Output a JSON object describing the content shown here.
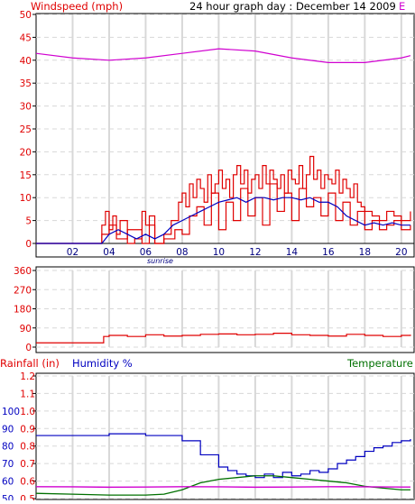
{
  "header": {
    "left": "Windspeed (mph)",
    "center": "24 hour graph day : December 14 2009",
    "right_partial": "E"
  },
  "colors": {
    "wind": "#e00000",
    "avg": "#0000c0",
    "magenta": "#d000d0",
    "humidity": "#0000c0",
    "temperature": "#007000",
    "axis": "#000000",
    "grid": "#d8d8d8"
  },
  "chart_data": [
    {
      "type": "line",
      "title": "Windspeed (mph)",
      "ylim": [
        0,
        50
      ],
      "yticks": [
        0,
        5,
        10,
        15,
        20,
        25,
        30,
        35,
        40,
        45,
        50
      ],
      "xticks": [
        "02",
        "04",
        "06",
        "08",
        "10",
        "12",
        "14",
        "16",
        "18",
        "20"
      ],
      "annotation": "sunrise",
      "series": [
        {
          "name": "",
          "role": "gust",
          "x": [
            0,
            1,
            2,
            3,
            3.6,
            3.8,
            4,
            4.2,
            4.4,
            4.6,
            5,
            5.4,
            5.8,
            6,
            6.2,
            6.5,
            7,
            7.4,
            7.8,
            8,
            8.2,
            8.4,
            8.6,
            8.8,
            9,
            9.2,
            9.4,
            9.6,
            9.8,
            10,
            10.2,
            10.4,
            10.6,
            10.8,
            11,
            11.2,
            11.4,
            11.6,
            11.8,
            12,
            12.2,
            12.4,
            12.6,
            12.8,
            13,
            13.2,
            13.4,
            13.6,
            13.8,
            14,
            14.2,
            14.4,
            14.6,
            14.8,
            15,
            15.2,
            15.4,
            15.6,
            15.8,
            16,
            16.2,
            16.4,
            16.6,
            16.8,
            17,
            17.2,
            17.4,
            17.6,
            17.8,
            18,
            18.4,
            18.8,
            19.2,
            19.6,
            20,
            20.5
          ],
          "values": [
            0,
            0,
            0,
            0,
            4,
            7,
            3,
            6,
            2,
            5,
            0,
            1,
            7,
            4,
            6,
            0,
            2,
            5,
            9,
            11,
            8,
            13,
            10,
            14,
            12,
            9,
            15,
            11,
            13,
            16,
            12,
            14,
            10,
            15,
            17,
            13,
            16,
            11,
            14,
            15,
            12,
            17,
            13,
            16,
            14,
            12,
            15,
            11,
            16,
            14,
            13,
            17,
            12,
            15,
            19,
            14,
            16,
            12,
            15,
            14,
            13,
            16,
            11,
            14,
            12,
            10,
            13,
            9,
            8,
            7,
            6,
            5,
            7,
            6,
            5,
            7
          ]
        },
        {
          "name": "",
          "role": "speed",
          "x": [
            0,
            1,
            2,
            3,
            3.6,
            4,
            4.4,
            5,
            5.8,
            6.2,
            6.5,
            7,
            7.6,
            8,
            8.4,
            8.8,
            9.2,
            9.6,
            10,
            10.4,
            10.8,
            11.2,
            11.6,
            12,
            12.4,
            12.8,
            13.2,
            13.6,
            14,
            14.4,
            14.8,
            15.2,
            15.6,
            16,
            16.4,
            16.8,
            17.2,
            17.6,
            18,
            18.4,
            18.8,
            19.2,
            19.6,
            20,
            20.5
          ],
          "values": [
            0,
            0,
            0,
            0,
            2,
            4,
            1,
            3,
            0,
            4,
            0,
            1,
            3,
            2,
            6,
            8,
            4,
            11,
            3,
            9,
            5,
            12,
            6,
            10,
            4,
            13,
            7,
            11,
            5,
            12,
            8,
            10,
            6,
            11,
            5,
            9,
            4,
            7,
            3,
            5,
            3,
            4,
            5,
            3,
            4
          ]
        },
        {
          "name": "",
          "role": "average",
          "x": [
            0,
            3.6,
            4,
            4.5,
            5,
            5.5,
            6,
            6.5,
            7,
            7.5,
            8,
            8.5,
            9,
            9.5,
            10,
            10.5,
            11,
            11.5,
            12,
            12.5,
            13,
            13.5,
            14,
            14.5,
            15,
            15.5,
            16,
            16.5,
            17,
            17.5,
            18,
            18.5,
            19,
            19.5,
            20,
            20.5
          ],
          "values": [
            0,
            0,
            2,
            3,
            2,
            1,
            2,
            1,
            2,
            4,
            5,
            6,
            7,
            8,
            9,
            9.5,
            10,
            9,
            10,
            10,
            9.5,
            10,
            10,
            9.5,
            10,
            9,
            9,
            8,
            6,
            5,
            4,
            4.5,
            4,
            4.5,
            4,
            4
          ]
        },
        {
          "name": "",
          "role": "magenta",
          "x": [
            0,
            2,
            4,
            6,
            8,
            10,
            12,
            14,
            16,
            18,
            20,
            20.5
          ],
          "values": [
            41.5,
            40.5,
            40,
            40.5,
            41.5,
            42.5,
            42,
            40.5,
            39.5,
            39.5,
            40.5,
            41
          ]
        }
      ]
    },
    {
      "type": "line",
      "title": "",
      "ylim": [
        0,
        360
      ],
      "yticks": [
        0,
        90,
        180,
        270,
        360
      ],
      "series": [
        {
          "name": "",
          "x": [
            0,
            1,
            2,
            3,
            3.6,
            3.7,
            4,
            5,
            6,
            7,
            8,
            9,
            10,
            11,
            12,
            13,
            14,
            15,
            16,
            17,
            18,
            19,
            20,
            20.5
          ],
          "values": [
            20,
            20,
            20,
            20,
            20,
            50,
            55,
            50,
            58,
            52,
            55,
            60,
            62,
            58,
            60,
            65,
            58,
            55,
            52,
            60,
            55,
            50,
            55,
            58
          ]
        }
      ]
    },
    {
      "type": "line",
      "title": "Rainfall (in)",
      "ylabel": "Rainfall (in)",
      "ylim": [
        0.5,
        1.2
      ],
      "yticks": [
        0.5,
        0.6,
        0.7,
        0.8,
        0.9,
        1.0,
        1.1,
        1.2
      ],
      "yticks_right_axis_labels": [
        50,
        60,
        70,
        80,
        90,
        100
      ],
      "series": [
        {
          "name": "Humidity %",
          "x": [
            0,
            2,
            4,
            6,
            7,
            8,
            9,
            10,
            10.5,
            11,
            11.5,
            12,
            12.5,
            13,
            13.5,
            14,
            14.5,
            15,
            15.5,
            16,
            16.5,
            17,
            17.5,
            18,
            18.5,
            19,
            19.5,
            20,
            20.5
          ],
          "values": [
            86,
            86,
            87,
            86,
            86,
            83,
            75,
            68,
            66,
            64,
            63,
            62,
            64,
            62,
            65,
            63,
            64,
            66,
            65,
            67,
            70,
            72,
            74,
            77,
            79,
            80,
            82,
            83,
            84
          ]
        },
        {
          "name": "Temperature",
          "x": [
            0,
            2,
            4,
            6,
            7,
            8,
            9,
            10,
            11,
            12,
            13,
            14,
            15,
            16,
            17,
            18,
            19,
            20,
            20.5
          ],
          "values": [
            53,
            52.5,
            52,
            52,
            52.5,
            55,
            59,
            61,
            62,
            63,
            63,
            62,
            61,
            60,
            59,
            57,
            56,
            55,
            55
          ]
        },
        {
          "name": "",
          "role": "magenta",
          "x": [
            0,
            2,
            4,
            6,
            8,
            10,
            12,
            14,
            16,
            18,
            20,
            20.5
          ],
          "values": [
            0.568,
            0.567,
            0.565,
            0.566,
            0.568,
            0.567,
            0.565,
            0.566,
            0.568,
            0.567,
            0.566,
            0.566
          ]
        }
      ]
    }
  ]
}
